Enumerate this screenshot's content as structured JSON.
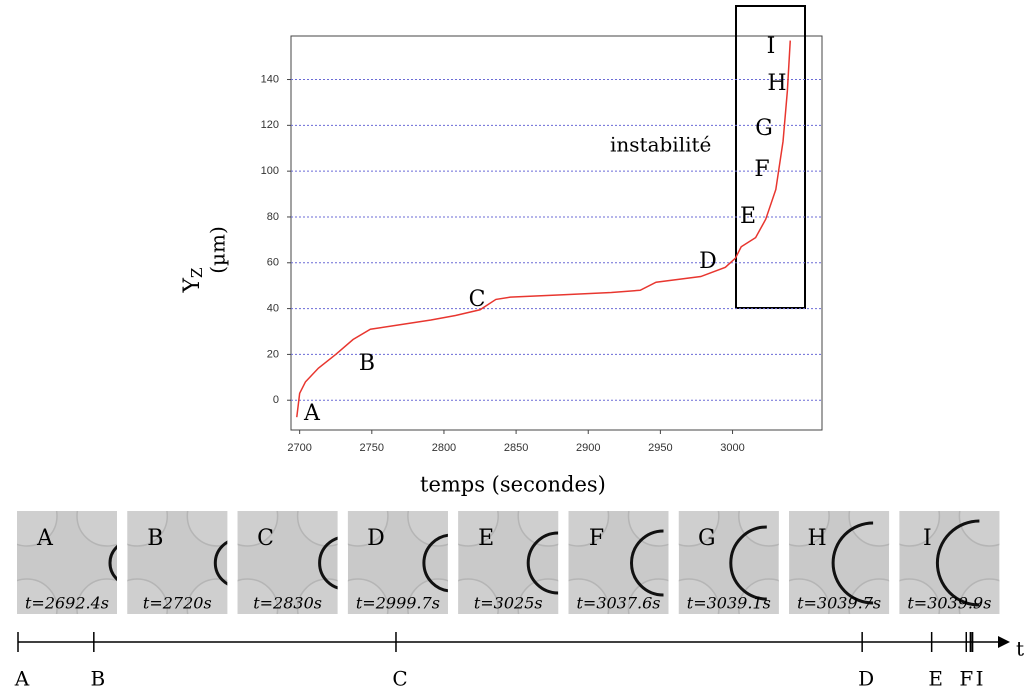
{
  "chart_data": {
    "type": "line",
    "xlabel": "temps (secondes)",
    "ylabel": "Y",
    "ylabel_sub": "Z",
    "ylabel_unit": "(µm)",
    "xlim": [
      2694,
      3062
    ],
    "ylim": [
      -13,
      159
    ],
    "xticks": [
      2700,
      2750,
      2800,
      2850,
      2900,
      2950,
      3000
    ],
    "yticks": [
      0,
      20,
      40,
      60,
      80,
      100,
      120,
      140
    ],
    "grid": true,
    "grid_color": "#6b6bd6",
    "series": [
      {
        "color": "#e8362f",
        "x": [
          2698,
          2700,
          2704,
          2713,
          2725,
          2737,
          2749,
          2770,
          2791,
          2808,
          2825,
          2836,
          2846,
          2881,
          2916,
          2936,
          2947,
          2978,
          2995,
          3002,
          3006,
          3016,
          3023,
          3030,
          3035,
          3038,
          3040
        ],
        "values": [
          -7.4,
          3,
          8,
          14,
          20,
          26.5,
          31,
          33,
          35,
          37,
          39.5,
          44,
          45,
          46,
          47,
          48,
          51.5,
          54,
          58,
          62,
          67,
          71,
          79,
          92,
          113,
          135,
          157
        ]
      }
    ],
    "annotations": [
      "A",
      "B",
      "C",
      "D",
      "E",
      "F",
      "G",
      "H",
      "I",
      "instabilité"
    ]
  },
  "panels": [
    {
      "letter": "A",
      "time": 2692.4,
      "time_label": "t=2692.4s",
      "timeline_label": "A"
    },
    {
      "letter": "B",
      "time": 2720,
      "time_label": "t=2720s",
      "timeline_label": "B"
    },
    {
      "letter": "C",
      "time": 2830,
      "time_label": "t=2830s",
      "timeline_label": "C"
    },
    {
      "letter": "D",
      "time": 2999.7,
      "time_label": "t=2999.7s",
      "timeline_label": "D"
    },
    {
      "letter": "E",
      "time": 3025,
      "time_label": "t=3025s",
      "timeline_label": "E"
    },
    {
      "letter": "F",
      "time": 3037.6,
      "time_label": "t=3037.6s",
      "timeline_label": "F"
    },
    {
      "letter": "G",
      "time": 3039.1,
      "time_label": "t=3039.1s"
    },
    {
      "letter": "H",
      "time": 3039.7,
      "time_label": "t=3039.7s"
    },
    {
      "letter": "I",
      "time": 3039.9,
      "time_label": "t=3039.9s",
      "timeline_label": "I"
    }
  ],
  "timeline": {
    "axis_label": "t"
  }
}
